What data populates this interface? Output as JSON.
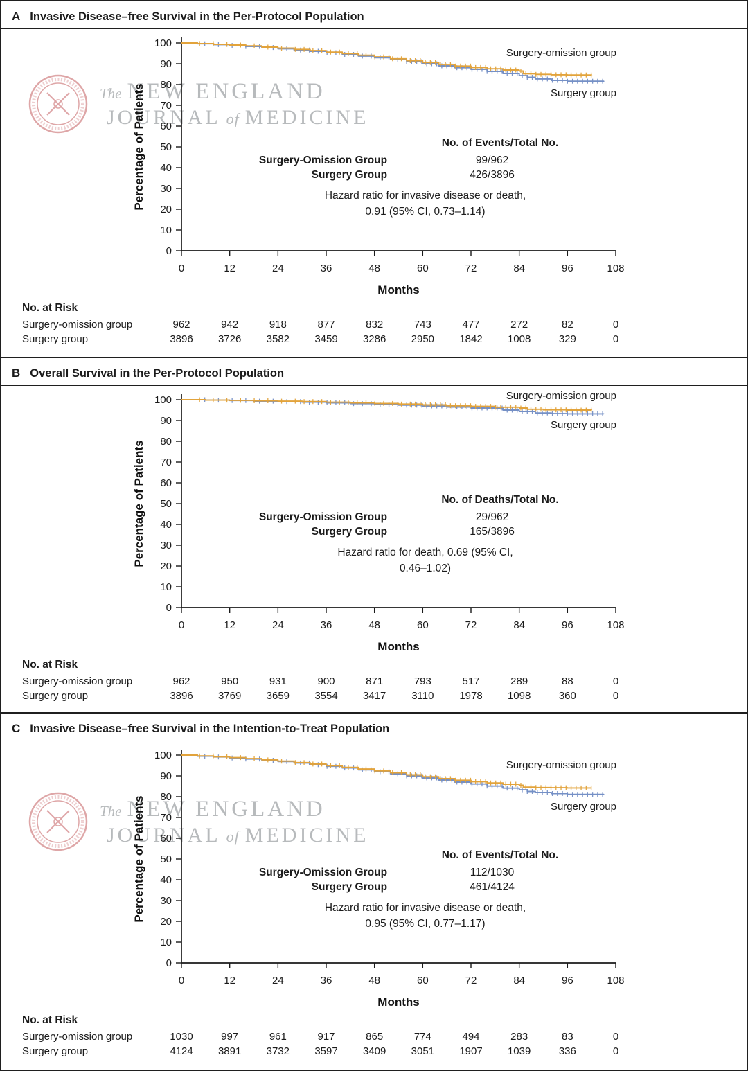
{
  "watermark": {
    "the": "The",
    "line1": "NEW ENGLAND",
    "journal": "JOURNAL",
    "of": "of",
    "medicine": "MEDICINE"
  },
  "axis": {
    "ylabel": "Percentage of Patients",
    "xlabel": "Months",
    "yticks": [
      0,
      10,
      20,
      30,
      40,
      50,
      60,
      70,
      80,
      90,
      100
    ],
    "xticks": [
      0,
      12,
      24,
      36,
      48,
      60,
      72,
      84,
      96,
      108
    ]
  },
  "colors": {
    "omission": "#E2A33B",
    "surgery": "#7590C6"
  },
  "panels": [
    {
      "letter": "A",
      "title": "Invasive Disease–free Survival in the Per-Protocol Population",
      "stats": {
        "header": "No. of Events/Total No.",
        "rows": [
          {
            "name": "Surgery-Omission Group",
            "value": "99/962"
          },
          {
            "name": "Surgery Group",
            "value": "426/3896"
          }
        ],
        "hazard_line1": "Hazard ratio for invasive disease or death,",
        "hazard_line2": "0.91 (95% CI, 0.73–1.14)"
      },
      "curve_labels": {
        "top": "Surgery-omission group",
        "bottom": "Surgery group"
      },
      "at_risk": {
        "title": "No. at Risk",
        "rows": [
          {
            "name": "Surgery-omission group",
            "values": [
              962,
              942,
              918,
              877,
              832,
              743,
              477,
              272,
              82,
              0
            ]
          },
          {
            "name": "Surgery group",
            "values": [
              3896,
              3726,
              3582,
              3459,
              3286,
              2950,
              1842,
              1008,
              329,
              0
            ]
          }
        ]
      }
    },
    {
      "letter": "B",
      "title": "Overall Survival in the Per-Protocol Population",
      "stats": {
        "header": "No. of Deaths/Total No.",
        "rows": [
          {
            "name": "Surgery-Omission Group",
            "value": "29/962"
          },
          {
            "name": "Surgery Group",
            "value": "165/3896"
          }
        ],
        "hazard_line1": "Hazard ratio for death, 0.69 (95% CI,",
        "hazard_line2": "0.46–1.02)"
      },
      "curve_labels": {
        "top": "Surgery-omission group",
        "bottom": "Surgery group"
      },
      "at_risk": {
        "title": "No. at Risk",
        "rows": [
          {
            "name": "Surgery-omission group",
            "values": [
              962,
              950,
              931,
              900,
              871,
              793,
              517,
              289,
              88,
              0
            ]
          },
          {
            "name": "Surgery group",
            "values": [
              3896,
              3769,
              3659,
              3554,
              3417,
              3110,
              1978,
              1098,
              360,
              0
            ]
          }
        ]
      }
    },
    {
      "letter": "C",
      "title": "Invasive Disease–free Survival in the Intention-to-Treat Population",
      "stats": {
        "header": "No. of Events/Total No.",
        "rows": [
          {
            "name": "Surgery-Omission Group",
            "value": "112/1030"
          },
          {
            "name": "Surgery Group",
            "value": "461/4124"
          }
        ],
        "hazard_line1": "Hazard ratio for invasive disease or death,",
        "hazard_line2": "0.95 (95% CI, 0.77–1.17)"
      },
      "curve_labels": {
        "top": "Surgery-omission group",
        "bottom": "Surgery group"
      },
      "at_risk": {
        "title": "No. at Risk",
        "rows": [
          {
            "name": "Surgery-omission group",
            "values": [
              1030,
              997,
              961,
              917,
              865,
              774,
              494,
              283,
              83,
              0
            ]
          },
          {
            "name": "Surgery group",
            "values": [
              4124,
              3891,
              3732,
              3597,
              3409,
              3051,
              1907,
              1039,
              336,
              0
            ]
          }
        ]
      }
    }
  ],
  "chart_data": [
    {
      "type": "line",
      "title": "Invasive Disease–free Survival in the Per-Protocol Population",
      "xlabel": "Months",
      "ylabel": "Percentage of Patients",
      "xlim": [
        0,
        108
      ],
      "ylim": [
        0,
        100
      ],
      "grid": false,
      "legend_position": "inline-right",
      "series": [
        {
          "name": "Surgery-omission group",
          "color": "#E2A33B",
          "x": [
            0,
            4,
            8,
            12,
            16,
            20,
            24,
            28,
            32,
            36,
            40,
            44,
            48,
            52,
            56,
            60,
            64,
            68,
            72,
            76,
            80,
            84,
            85,
            88,
            92,
            96,
            102
          ],
          "y": [
            100,
            99.7,
            99.3,
            99,
            98.6,
            98,
            97.5,
            96.9,
            96.3,
            95.6,
            94.9,
            94.1,
            93.3,
            92.4,
            91.5,
            90.6,
            89.7,
            88.9,
            88.2,
            87.6,
            87,
            86.5,
            85.2,
            84.9,
            84.7,
            84.6,
            84.5
          ]
        },
        {
          "name": "Surgery group",
          "color": "#7590C6",
          "x": [
            0,
            4,
            8,
            12,
            16,
            20,
            24,
            28,
            32,
            36,
            40,
            44,
            48,
            52,
            56,
            60,
            64,
            68,
            72,
            76,
            80,
            84,
            86,
            88,
            92,
            96,
            105
          ],
          "y": [
            100,
            99.6,
            99.2,
            98.8,
            98.3,
            97.8,
            97.2,
            96.6,
            96,
            95.3,
            94.5,
            93.7,
            92.9,
            92,
            91,
            90,
            89,
            88.1,
            87.3,
            86.3,
            85.3,
            84.3,
            83.5,
            82.7,
            82,
            81.6,
            81.3
          ]
        }
      ]
    },
    {
      "type": "line",
      "title": "Overall Survival in the Per-Protocol Population",
      "xlabel": "Months",
      "ylabel": "Percentage of Patients",
      "xlim": [
        0,
        108
      ],
      "ylim": [
        0,
        100
      ],
      "grid": false,
      "legend_position": "inline-right",
      "series": [
        {
          "name": "Surgery-omission group",
          "color": "#E2A33B",
          "x": [
            0,
            6,
            12,
            18,
            24,
            30,
            36,
            42,
            48,
            54,
            60,
            66,
            72,
            78,
            84,
            86,
            90,
            96,
            102
          ],
          "y": [
            100,
            99.8,
            99.7,
            99.5,
            99.3,
            99.1,
            98.8,
            98.5,
            98.2,
            97.9,
            97.5,
            97.1,
            96.8,
            96.4,
            96,
            95.4,
            95.1,
            95,
            94.9
          ]
        },
        {
          "name": "Surgery group",
          "color": "#7590C6",
          "x": [
            0,
            6,
            12,
            18,
            24,
            30,
            36,
            42,
            48,
            54,
            60,
            66,
            72,
            80,
            84,
            88,
            92,
            96,
            105
          ],
          "y": [
            100,
            99.8,
            99.6,
            99.3,
            99.1,
            98.8,
            98.5,
            98.1,
            97.8,
            97.4,
            97,
            96.5,
            96,
            95,
            94.3,
            93.6,
            93.3,
            93.2,
            93
          ]
        }
      ]
    },
    {
      "type": "line",
      "title": "Invasive Disease–free Survival in the Intention-to-Treat Population",
      "xlabel": "Months",
      "ylabel": "Percentage of Patients",
      "xlim": [
        0,
        108
      ],
      "ylim": [
        0,
        100
      ],
      "grid": false,
      "legend_position": "inline-right",
      "series": [
        {
          "name": "Surgery-omission group",
          "color": "#E2A33B",
          "x": [
            0,
            4,
            8,
            12,
            16,
            20,
            24,
            28,
            32,
            36,
            40,
            44,
            48,
            52,
            56,
            60,
            64,
            68,
            72,
            76,
            80,
            84,
            85,
            88,
            92,
            96,
            102
          ],
          "y": [
            100,
            99.6,
            99.2,
            98.8,
            98.3,
            97.7,
            97.1,
            96.4,
            95.7,
            94.9,
            94.1,
            93.3,
            92.4,
            91.5,
            90.5,
            89.6,
            88.7,
            87.9,
            87.2,
            86.6,
            86,
            85.5,
            84.6,
            84.4,
            84.3,
            84.2,
            84.2
          ]
        },
        {
          "name": "Surgery group",
          "color": "#7590C6",
          "x": [
            0,
            4,
            8,
            12,
            16,
            20,
            24,
            28,
            32,
            36,
            40,
            44,
            48,
            52,
            56,
            60,
            64,
            68,
            72,
            76,
            80,
            84,
            86,
            88,
            92,
            96,
            105
          ],
          "y": [
            100,
            99.5,
            99.1,
            98.6,
            98.1,
            97.5,
            96.9,
            96.2,
            95.4,
            94.6,
            93.8,
            92.9,
            92,
            91,
            90,
            89,
            88,
            87,
            86.1,
            85.1,
            84.1,
            83.3,
            82.5,
            82,
            81.5,
            81.1,
            80.9
          ]
        }
      ]
    }
  ]
}
